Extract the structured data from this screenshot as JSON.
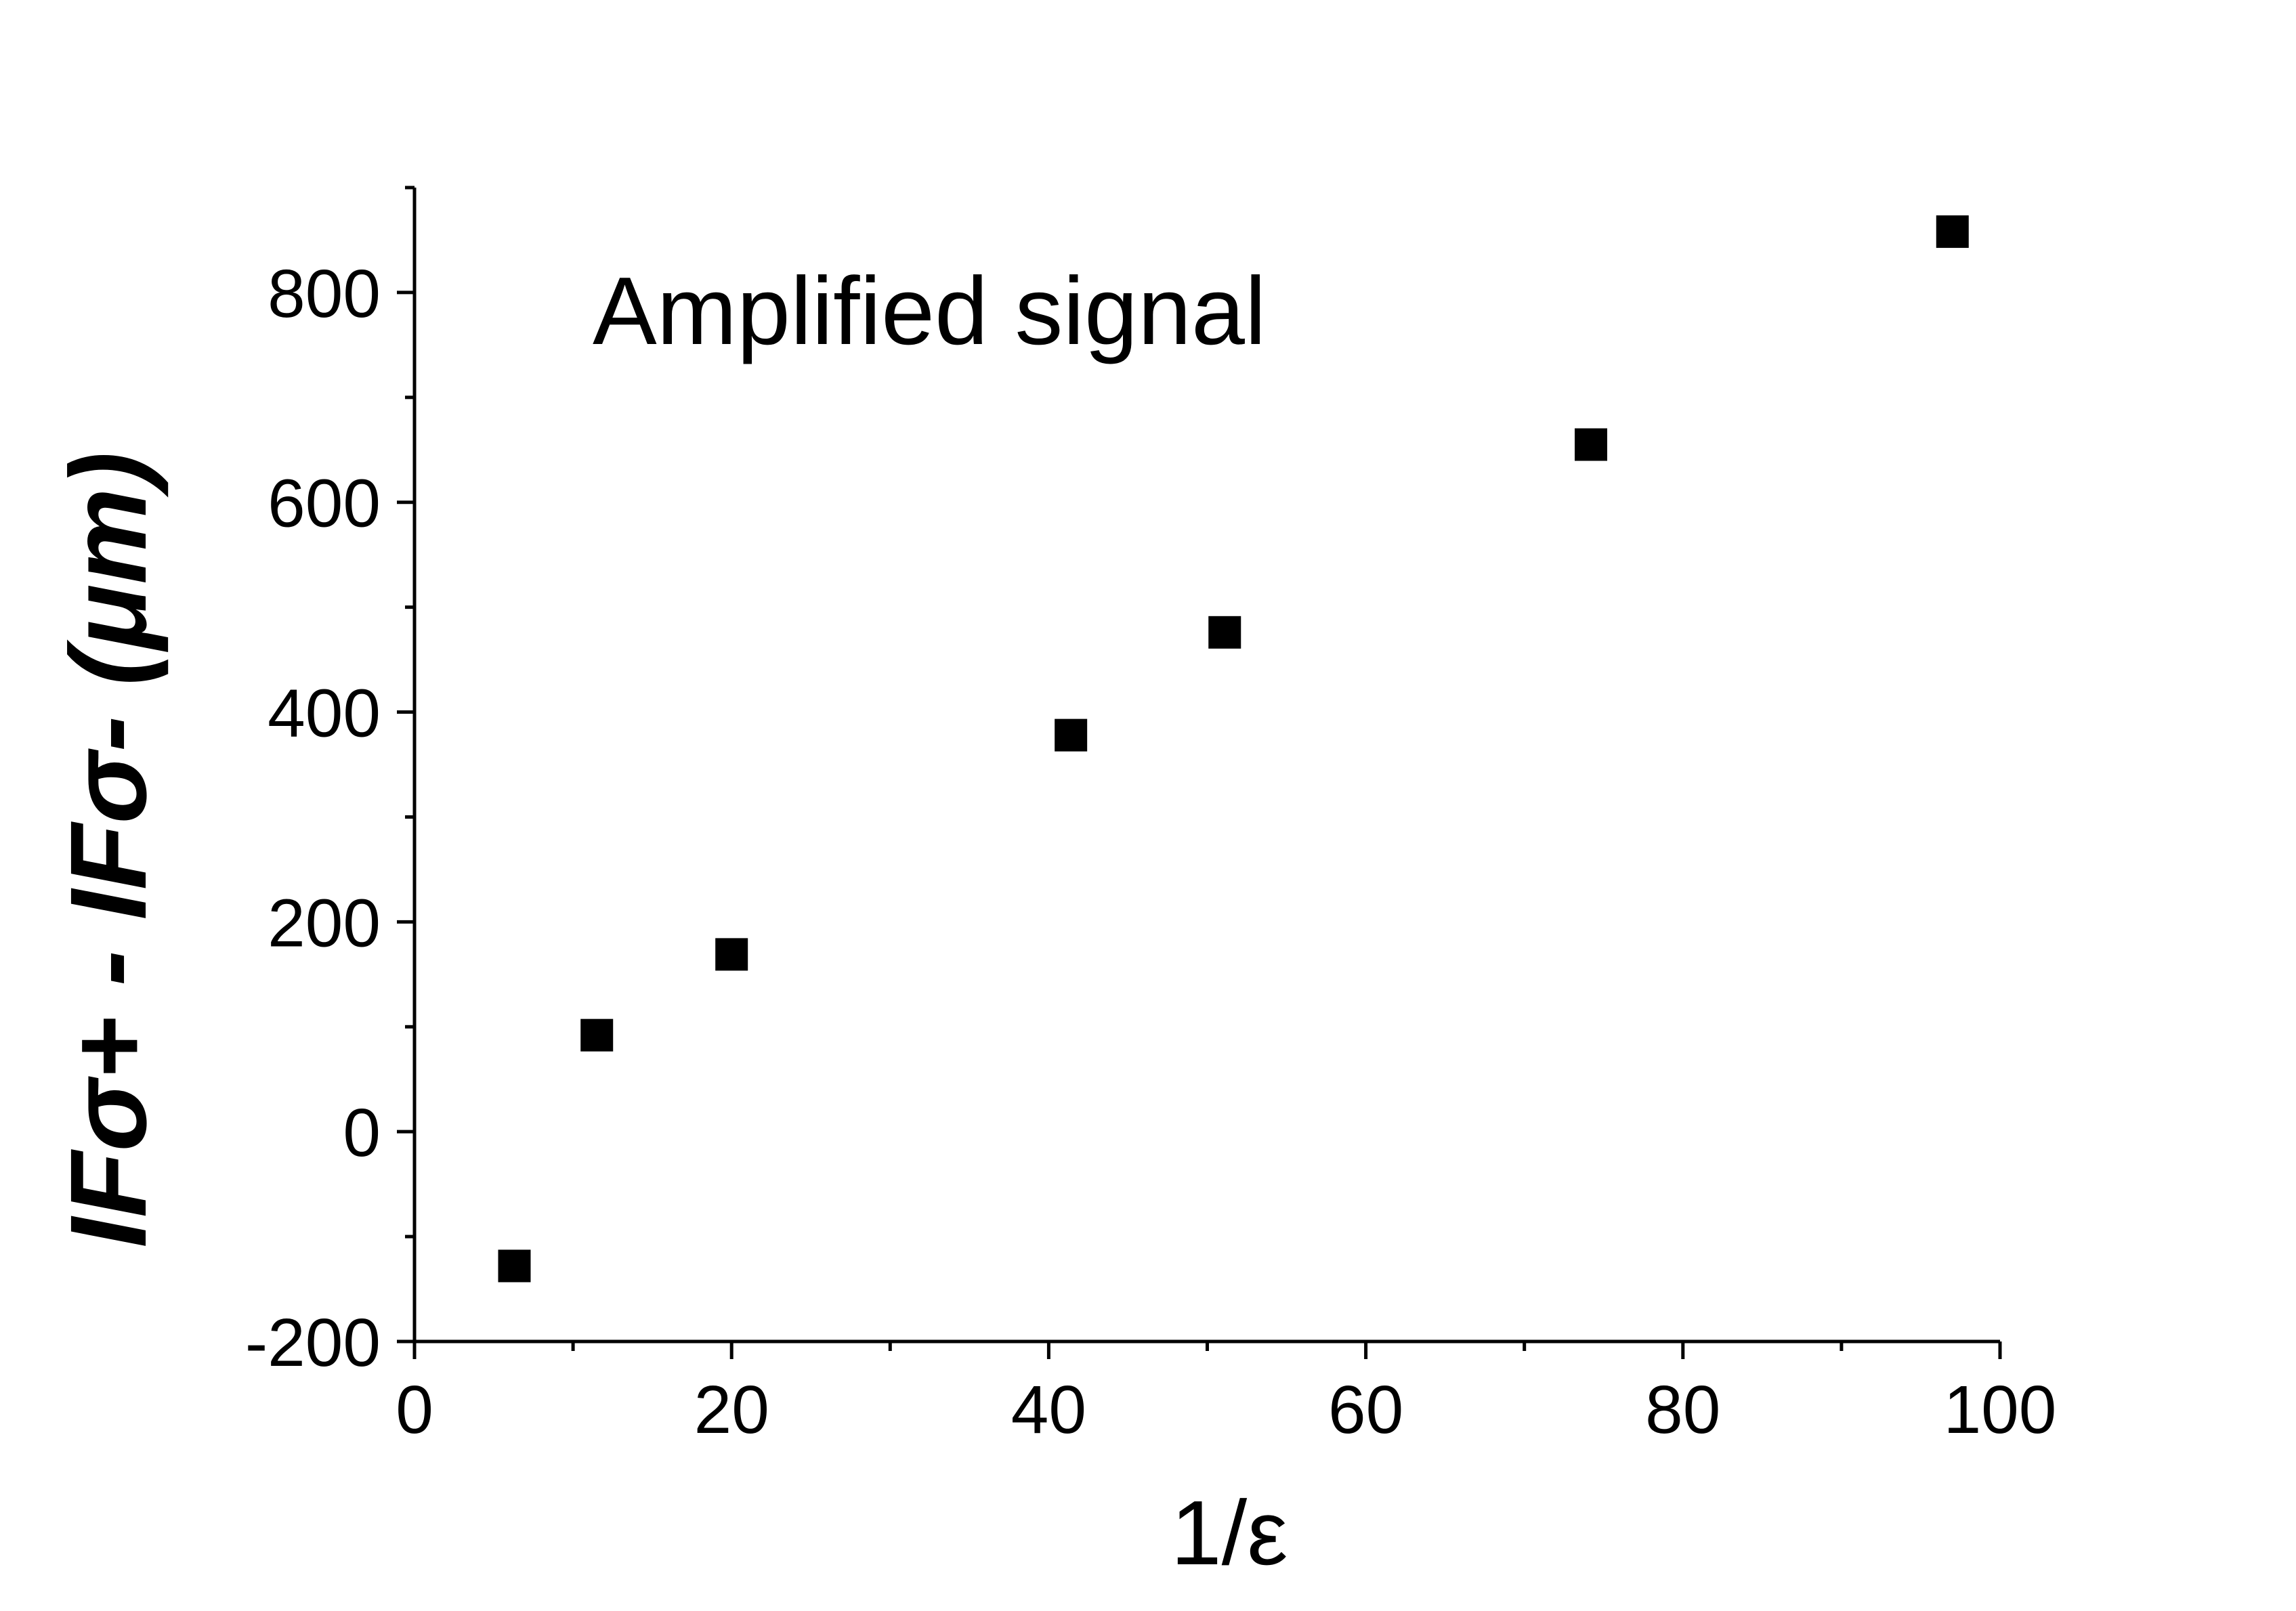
{
  "chart_data": {
    "type": "scatter",
    "annotation": "Amplified signal",
    "x_label": "1/ε",
    "y_label": "IFσ+ - IFσ- (μm)",
    "x": [
      6.3,
      11.5,
      20.0,
      41.4,
      51.1,
      74.2,
      97.0
    ],
    "values": [
      -128,
      92,
      169,
      378,
      476,
      655,
      858
    ],
    "color": "#000000",
    "xlim": [
      0,
      100
    ],
    "xticks": [
      0,
      20,
      40,
      60,
      80,
      100
    ],
    "ylim": [
      -200,
      900
    ],
    "yticks": [
      -200,
      0,
      200,
      400,
      600,
      800
    ]
  }
}
